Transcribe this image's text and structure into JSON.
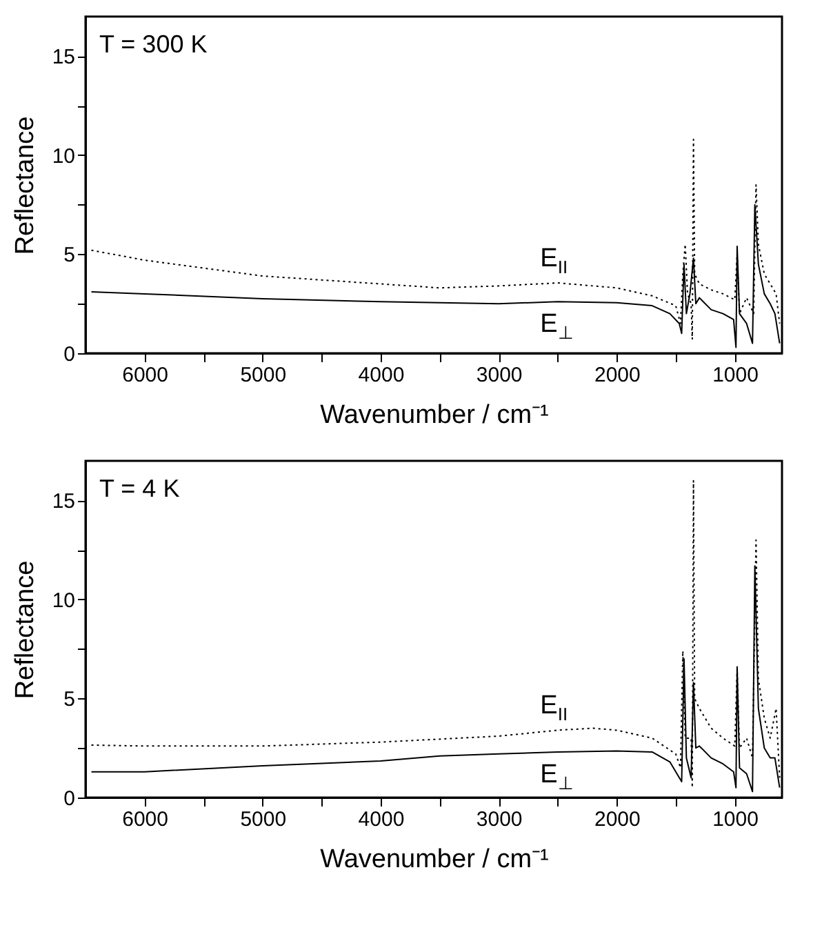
{
  "chart_data": [
    {
      "type": "line",
      "xlabel": "Wavenumber / cm⁻¹",
      "ylabel": "Reflectance",
      "annotations": [
        "T = 300 K"
      ],
      "xlim": [
        6500,
        600
      ],
      "ylim": [
        0,
        17
      ],
      "xticks": [
        6000,
        5000,
        4000,
        3000,
        2000,
        1000,
        {
          "value": 5500,
          "label": null
        },
        {
          "value": 4500,
          "label": null
        },
        {
          "value": 3500,
          "label": null
        },
        {
          "value": 2500,
          "label": null
        },
        {
          "value": 1500,
          "label": null
        }
      ],
      "yticks": [
        0,
        5,
        10,
        15,
        {
          "value": 2.5,
          "label": null
        },
        {
          "value": 7.5,
          "label": null
        },
        {
          "value": 12.5,
          "label": null
        }
      ],
      "grid": false,
      "series": [
        {
          "name": "E$_{II}$",
          "color": "#000000",
          "line_style": "dotted",
          "x": [
            6450,
            6000,
            5000,
            4000,
            3500,
            3000,
            2500,
            2000,
            1700,
            1500,
            1460,
            1440,
            1420,
            1400,
            1370,
            1360,
            1350,
            1340,
            1300,
            1200,
            1100,
            1000,
            980,
            960,
            900,
            840,
            820,
            800,
            750,
            700,
            650,
            620
          ],
          "values": [
            5.2,
            4.7,
            3.9,
            3.5,
            3.3,
            3.4,
            3.55,
            3.3,
            2.9,
            2.4,
            1.5,
            4.0,
            5.5,
            3.0,
            2.5,
            0.7,
            10.8,
            4.0,
            3.5,
            3.2,
            3.0,
            2.7,
            5.0,
            2.0,
            2.8,
            2.0,
            8.5,
            5.5,
            4.0,
            3.5,
            3.0,
            1.5
          ]
        },
        {
          "name": "E$_{⊥}$",
          "color": "#000000",
          "line_style": "solid",
          "x": [
            6450,
            6000,
            5000,
            4000,
            3000,
            2500,
            2000,
            1700,
            1550,
            1470,
            1450,
            1430,
            1410,
            1380,
            1350,
            1330,
            1300,
            1200,
            1100,
            1010,
            990,
            980,
            960,
            900,
            850,
            830,
            800,
            750,
            700,
            660,
            620
          ],
          "values": [
            3.1,
            3.0,
            2.75,
            2.6,
            2.5,
            2.6,
            2.55,
            2.4,
            2.0,
            1.5,
            1.0,
            4.5,
            2.0,
            3.0,
            4.8,
            2.5,
            2.8,
            2.2,
            2.0,
            1.7,
            0.3,
            5.4,
            2.0,
            1.5,
            0.5,
            7.5,
            4.5,
            3.0,
            2.5,
            2.0,
            0.5
          ]
        }
      ]
    },
    {
      "type": "line",
      "xlabel": "Wavenumber / cm⁻¹",
      "ylabel": "Reflectance",
      "annotations": [
        "T = 4 K"
      ],
      "xlim": [
        6500,
        600
      ],
      "ylim": [
        0,
        17
      ],
      "xticks": [
        6000,
        5000,
        4000,
        3000,
        2000,
        1000,
        {
          "value": 5500,
          "label": null
        },
        {
          "value": 4500,
          "label": null
        },
        {
          "value": 3500,
          "label": null
        },
        {
          "value": 2500,
          "label": null
        },
        {
          "value": 1500,
          "label": null
        }
      ],
      "yticks": [
        0,
        5,
        10,
        15,
        {
          "value": 2.5,
          "label": null
        },
        {
          "value": 7.5,
          "label": null
        },
        {
          "value": 12.5,
          "label": null
        }
      ],
      "grid": false,
      "series": [
        {
          "name": "E$_{II}$",
          "color": "#000000",
          "line_style": "dotted",
          "x": [
            6450,
            6000,
            5000,
            4000,
            3000,
            2500,
            2200,
            2000,
            1700,
            1500,
            1460,
            1440,
            1420,
            1370,
            1360,
            1350,
            1340,
            1300,
            1200,
            1100,
            1000,
            980,
            960,
            900,
            850,
            820,
            800,
            750,
            700,
            650,
            620
          ],
          "values": [
            2.65,
            2.6,
            2.6,
            2.8,
            3.1,
            3.4,
            3.5,
            3.4,
            3.0,
            2.2,
            1.5,
            7.4,
            3.0,
            3.0,
            0.5,
            16.0,
            5.0,
            4.5,
            3.5,
            3.0,
            2.6,
            6.5,
            2.5,
            3.0,
            2.0,
            13.0,
            6.0,
            4.0,
            3.0,
            4.5,
            1.0
          ]
        },
        {
          "name": "E$_{⊥}$",
          "color": "#000000",
          "line_style": "solid",
          "x": [
            6450,
            6000,
            5000,
            4000,
            3500,
            3000,
            2500,
            2000,
            1700,
            1550,
            1470,
            1450,
            1430,
            1410,
            1370,
            1350,
            1330,
            1300,
            1200,
            1100,
            1010,
            990,
            980,
            960,
            900,
            850,
            830,
            800,
            750,
            700,
            660,
            620
          ],
          "values": [
            1.3,
            1.3,
            1.6,
            1.85,
            2.1,
            2.2,
            2.3,
            2.35,
            2.3,
            1.8,
            1.0,
            0.8,
            7.0,
            2.0,
            1.0,
            5.8,
            2.5,
            2.6,
            2.0,
            1.7,
            1.3,
            0.5,
            6.6,
            1.5,
            1.2,
            0.3,
            11.7,
            4.5,
            2.5,
            2.0,
            2.0,
            0.5
          ]
        }
      ]
    }
  ]
}
